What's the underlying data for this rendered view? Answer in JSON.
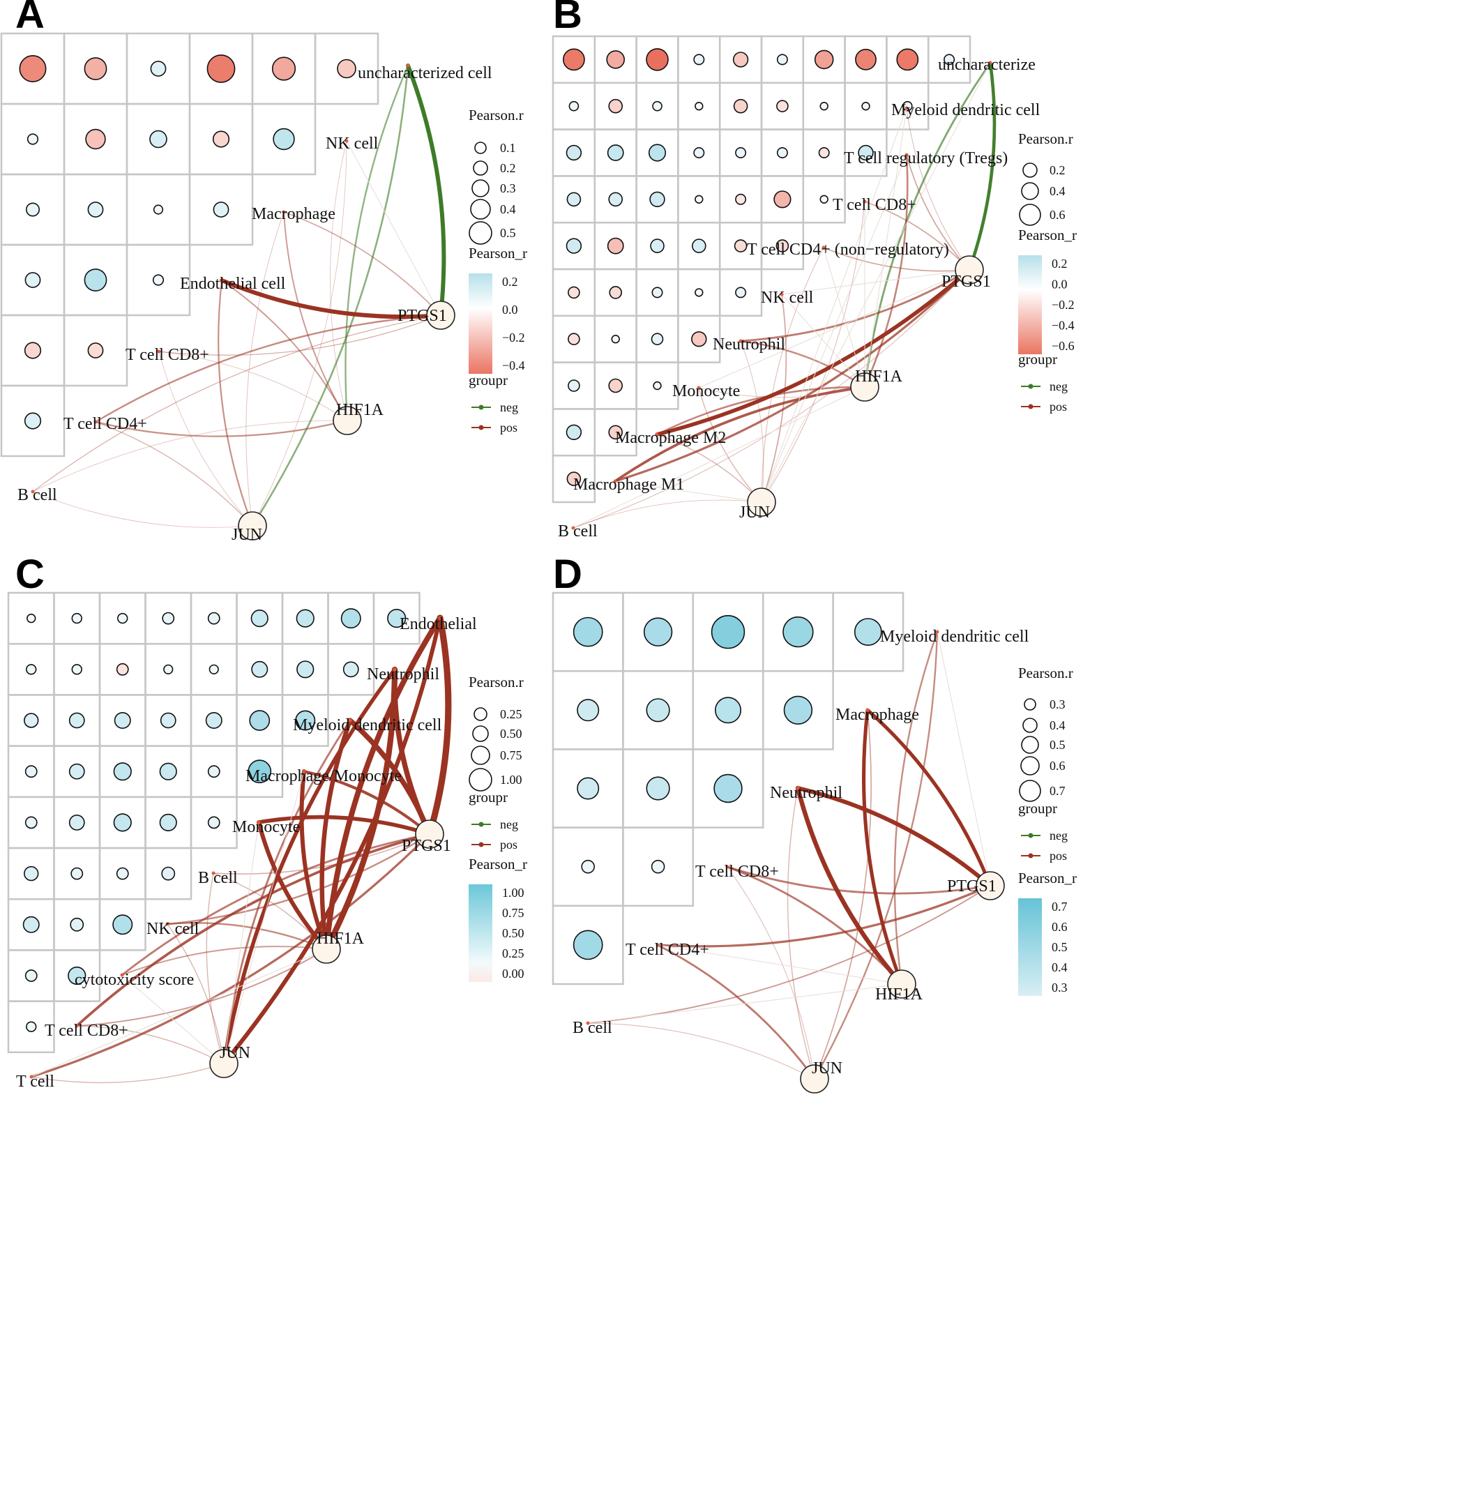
{
  "colors": {
    "neg": "#3e7b27",
    "pos": "#9b3322",
    "grid": "#c6c6c6",
    "gene_fill": "#fdf4ea",
    "pos_cell": "#e9705e",
    "neg_cell": "#7ccbdc",
    "zero_cell": "#f4f9fb"
  },
  "chart_data": [
    {
      "panel": "A",
      "type": "network-correlogram",
      "cell_types": [
        "B cell",
        "T cell CD4+",
        "T cell CD8+",
        "Endothelial cell",
        "Macrophage",
        "NK cell",
        "uncharacterized cell"
      ],
      "genes": [
        "PTGS1",
        "HIF1A",
        "JUN"
      ],
      "triangle_rows": [
        [
          -0.4,
          -0.25,
          0.08,
          -0.45,
          -0.28,
          -0.15
        ],
        [
          0.02,
          -0.18,
          0.12,
          -0.1,
          0.22
        ],
        [
          0.05,
          0.08,
          0.01,
          0.08
        ],
        [
          0.08,
          0.25,
          0.02
        ],
        [
          -0.1,
          -0.08
        ],
        [
          0.1
        ]
      ],
      "links": [
        {
          "from": "uncharacterized cell",
          "to": "PTGS1",
          "r": -0.6,
          "group": "neg"
        },
        {
          "from": "uncharacterized cell",
          "to": "HIF1A",
          "r": -0.2,
          "group": "neg"
        },
        {
          "from": "uncharacterized cell",
          "to": "JUN",
          "r": -0.22,
          "group": "neg"
        },
        {
          "from": "Endothelial cell",
          "to": "PTGS1",
          "r": 0.6,
          "group": "pos"
        },
        {
          "from": "Endothelial cell",
          "to": "HIF1A",
          "r": 0.15,
          "group": "pos"
        },
        {
          "from": "Endothelial cell",
          "to": "JUN",
          "r": 0.18,
          "group": "pos"
        },
        {
          "from": "Macrophage",
          "to": "PTGS1",
          "r": 0.12,
          "group": "pos"
        },
        {
          "from": "Macrophage",
          "to": "HIF1A",
          "r": 0.15,
          "group": "pos"
        },
        {
          "from": "T cell CD4+",
          "to": "PTGS1",
          "r": 0.2,
          "group": "pos"
        },
        {
          "from": "T cell CD4+",
          "to": "HIF1A",
          "r": 0.18,
          "group": "pos"
        },
        {
          "from": "T cell CD4+",
          "to": "JUN",
          "r": 0.08,
          "group": "pos"
        },
        {
          "from": "T cell CD8+",
          "to": "PTGS1",
          "r": 0.08,
          "group": "pos"
        },
        {
          "from": "B cell",
          "to": "PTGS1",
          "r": 0.08,
          "group": "pos"
        },
        {
          "from": "NK cell",
          "to": "HIF1A",
          "r": 0.03,
          "group": "pos"
        },
        {
          "from": "NK cell",
          "to": "JUN",
          "r": 0.03,
          "group": "pos"
        },
        {
          "from": "Macrophage",
          "to": "JUN",
          "r": 0.04,
          "group": "pos"
        },
        {
          "from": "T cell CD8+",
          "to": "HIF1A",
          "r": 0.03,
          "group": "pos"
        },
        {
          "from": "T cell CD8+",
          "to": "JUN",
          "r": 0.03,
          "group": "pos"
        },
        {
          "from": "B cell",
          "to": "HIF1A",
          "r": 0.03,
          "group": "pos"
        },
        {
          "from": "B cell",
          "to": "JUN",
          "r": 0.03,
          "group": "pos"
        }
      ],
      "legend": {
        "size_title": "Pearson.r",
        "size_values": [
          "0.1",
          "0.2",
          "0.3",
          "0.4",
          "0.5"
        ],
        "fill_title": "Pearson_r",
        "fill_ticks": [
          "0.2",
          "0.0",
          "−0.2",
          "−0.4"
        ],
        "group_title": "groupr",
        "groups": [
          "neg",
          "pos"
        ]
      }
    },
    {
      "panel": "B",
      "type": "network-correlogram",
      "cell_types": [
        "B cell",
        "Macrophage M1",
        "Macrophage M2",
        "Monocyte",
        "Neutrophil",
        "NK cell",
        "T cell CD4+ (non−regulatory)",
        "T cell CD8+",
        "T cell regulatory (Tregs)",
        "Myeloid dendritic cell",
        "uncharacterize"
      ],
      "genes": [
        "PTGS1",
        "HIF1A",
        "JUN"
      ],
      "triangle_rows": [
        [
          -0.6,
          -0.35,
          -0.65,
          0.05,
          -0.2,
          0.05,
          -0.4,
          -0.55,
          -0.6,
          0.05
        ],
        [
          0.03,
          -0.15,
          0.03,
          0.01,
          -0.15,
          -0.08,
          0.01,
          0.01,
          0.03
        ],
        [
          0.2,
          0.25,
          0.3,
          0.05,
          0.05,
          0.05,
          -0.05,
          0.2
        ],
        [
          0.15,
          0.15,
          0.2,
          0.01,
          -0.05,
          -0.3,
          0.01
        ],
        [
          0.2,
          -0.25,
          0.15,
          0.15,
          -0.1,
          -0.1
        ],
        [
          -0.08,
          -0.1,
          0.05,
          0.01,
          0.05
        ],
        [
          -0.08,
          0.01,
          0.08,
          -0.2
        ],
        [
          0.08,
          -0.15,
          0.01
        ],
        [
          0.2,
          -0.15
        ],
        [
          -0.15
        ]
      ],
      "links": [
        {
          "from": "uncharacterize",
          "to": "PTGS1",
          "r": -0.45,
          "group": "neg"
        },
        {
          "from": "uncharacterize",
          "to": "HIF1A",
          "r": -0.25,
          "group": "neg"
        },
        {
          "from": "T cell regulatory (Tregs)",
          "to": "HIF1A",
          "r": 0.22,
          "group": "pos"
        },
        {
          "from": "Macrophage M2",
          "to": "PTGS1",
          "r": 0.55,
          "group": "pos"
        },
        {
          "from": "Macrophage M2",
          "to": "HIF1A",
          "r": 0.22,
          "group": "pos"
        },
        {
          "from": "Macrophage M1",
          "to": "PTGS1",
          "r": 0.3,
          "group": "pos"
        },
        {
          "from": "Macrophage M1",
          "to": "HIF1A",
          "r": 0.35,
          "group": "pos"
        },
        {
          "from": "Neutrophil",
          "to": "PTGS1",
          "r": 0.25,
          "group": "pos"
        },
        {
          "from": "Neutrophil",
          "to": "HIF1A",
          "r": 0.2,
          "group": "pos"
        },
        {
          "from": "T cell CD4+ (non−regulatory)",
          "to": "PTGS1",
          "r": 0.12,
          "group": "pos"
        },
        {
          "from": "T cell CD8+",
          "to": "PTGS1",
          "r": 0.12,
          "group": "pos"
        },
        {
          "from": "T cell regulatory (Tregs)",
          "to": "PTGS1",
          "r": 0.12,
          "group": "pos"
        },
        {
          "from": "NK cell",
          "to": "JUN",
          "r": 0.12,
          "group": "pos"
        },
        {
          "from": "Monocyte",
          "to": "JUN",
          "r": 0.08,
          "group": "pos"
        },
        {
          "from": "Macrophage M2",
          "to": "JUN",
          "r": 0.08,
          "group": "pos"
        },
        {
          "from": "B cell",
          "to": "PTGS1",
          "r": 0.05,
          "group": "pos"
        },
        {
          "from": "B cell",
          "to": "JUN",
          "r": 0.03,
          "group": "pos"
        },
        {
          "from": "Myeloid dendritic cell",
          "to": "PTGS1",
          "r": 0.05,
          "group": "pos"
        },
        {
          "from": "T cell CD8+",
          "to": "JUN",
          "r": 0.05,
          "group": "pos"
        },
        {
          "from": "T cell CD4+ (non−regulatory)",
          "to": "JUN",
          "r": 0.05,
          "group": "pos"
        },
        {
          "from": "Neutrophil",
          "to": "JUN",
          "r": 0.04,
          "group": "pos"
        },
        {
          "from": "Monocyte",
          "to": "HIF1A",
          "r": 0.04,
          "group": "pos"
        }
      ],
      "legend": {
        "size_title": "Pearson.r",
        "size_values": [
          "0.2",
          "0.4",
          "0.6"
        ],
        "fill_title": "Pearson_r",
        "fill_ticks": [
          "0.2",
          "0.0",
          "−0.2",
          "−0.4",
          "−0.6"
        ],
        "group_title": "groupr",
        "groups": [
          "neg",
          "pos"
        ]
      }
    },
    {
      "panel": "C",
      "type": "network-correlogram",
      "cell_types": [
        "T cell",
        "T cell CD8+",
        "cytotoxicity score",
        "NK cell",
        "B cell",
        "Monocyte",
        "Macrophage/Monocyte",
        "Myeloid dendritic cell",
        "Neutrophil",
        "Endothelial"
      ],
      "genes": [
        "PTGS1",
        "HIF1A",
        "JUN"
      ],
      "triangle_rows": [
        [
          0.02,
          0.05,
          0.05,
          0.1,
          0.1,
          0.35,
          0.4,
          0.55,
          0.45
        ],
        [
          0.05,
          0.05,
          -0.1,
          0.03,
          0.03,
          0.3,
          0.35,
          0.25
        ],
        [
          0.2,
          0.25,
          0.3,
          0.25,
          0.3,
          0.6,
          0.55
        ],
        [
          0.1,
          0.25,
          0.4,
          0.35,
          0.1,
          0.85
        ],
        [
          0.1,
          0.25,
          0.4,
          0.35,
          0.1
        ],
        [
          0.2,
          0.1,
          0.1,
          0.15
        ],
        [
          0.3,
          0.15,
          0.55
        ],
        [
          0.1,
          0.4
        ],
        [
          0.05
        ]
      ],
      "links": [
        {
          "from": "Endothelial",
          "to": "PTGS1",
          "r": 0.95,
          "group": "pos"
        },
        {
          "from": "Endothelial",
          "to": "HIF1A",
          "r": 0.8,
          "group": "pos"
        },
        {
          "from": "Endothelial",
          "to": "JUN",
          "r": 0.6,
          "group": "pos"
        },
        {
          "from": "Neutrophil",
          "to": "PTGS1",
          "r": 0.75,
          "group": "pos"
        },
        {
          "from": "Neutrophil",
          "to": "HIF1A",
          "r": 0.85,
          "group": "pos"
        },
        {
          "from": "Neutrophil",
          "to": "JUN",
          "r": 0.55,
          "group": "pos"
        },
        {
          "from": "Myeloid dendritic cell",
          "to": "PTGS1",
          "r": 0.75,
          "group": "pos"
        },
        {
          "from": "Myeloid dendritic cell",
          "to": "HIF1A",
          "r": 0.65,
          "group": "pos"
        },
        {
          "from": "Macrophage/Monocyte",
          "to": "PTGS1",
          "r": 0.4,
          "group": "pos"
        },
        {
          "from": "Macrophage/Monocyte",
          "to": "HIF1A",
          "r": 0.6,
          "group": "pos"
        },
        {
          "from": "Monocyte",
          "to": "PTGS1",
          "r": 0.55,
          "group": "pos"
        },
        {
          "from": "Monocyte",
          "to": "HIF1A",
          "r": 0.6,
          "group": "pos"
        },
        {
          "from": "T cell CD8+",
          "to": "PTGS1",
          "r": 0.35,
          "group": "pos"
        },
        {
          "from": "T cell",
          "to": "PTGS1",
          "r": 0.3,
          "group": "pos"
        },
        {
          "from": "cytotoxicity score",
          "to": "PTGS1",
          "r": 0.25,
          "group": "pos"
        },
        {
          "from": "NK cell",
          "to": "PTGS1",
          "r": 0.2,
          "group": "pos"
        },
        {
          "from": "NK cell",
          "to": "HIF1A",
          "r": 0.2,
          "group": "pos"
        },
        {
          "from": "B cell",
          "to": "PTGS1",
          "r": 0.1,
          "group": "pos"
        },
        {
          "from": "B cell",
          "to": "HIF1A",
          "r": 0.08,
          "group": "pos"
        },
        {
          "from": "T cell CD8+",
          "to": "HIF1A",
          "r": 0.15,
          "group": "pos"
        },
        {
          "from": "cytotoxicity score",
          "to": "HIF1A",
          "r": 0.15,
          "group": "pos"
        },
        {
          "from": "T cell",
          "to": "JUN",
          "r": 0.08,
          "group": "pos"
        },
        {
          "from": "T cell CD8+",
          "to": "JUN",
          "r": 0.08,
          "group": "pos"
        },
        {
          "from": "B cell",
          "to": "JUN",
          "r": 0.08,
          "group": "pos"
        },
        {
          "from": "NK cell",
          "to": "JUN",
          "r": 0.08,
          "group": "pos"
        },
        {
          "from": "Myeloid dendritic cell",
          "to": "JUN",
          "r": 0.25,
          "group": "pos"
        }
      ],
      "legend": {
        "size_title": "Pearson.r",
        "size_values": [
          "0.25",
          "0.50",
          "0.75",
          "1.00"
        ],
        "group_title": "groupr",
        "groups": [
          "neg",
          "pos"
        ],
        "fill_title": "Pearson_r",
        "fill_ticks": [
          "1.00",
          "0.75",
          "0.50",
          "0.25",
          "0.00"
        ]
      }
    },
    {
      "panel": "D",
      "type": "network-correlogram",
      "cell_types": [
        "B cell",
        "T cell CD4+",
        "T cell CD8+",
        "Neutrophil",
        "Macrophage",
        "Myeloid dendritic cell"
      ],
      "genes": [
        "PTGS1",
        "HIF1A",
        "JUN"
      ],
      "triangle_rows": [
        [
          0.55,
          0.5,
          0.75,
          0.6,
          0.45
        ],
        [
          0.25,
          0.3,
          0.4,
          0.5
        ],
        [
          0.25,
          0.3,
          0.5
        ],
        [
          0.05,
          0.05
        ],
        [
          0.55
        ]
      ],
      "links": [
        {
          "from": "Neutrophil",
          "to": "PTGS1",
          "r": 0.6,
          "group": "pos"
        },
        {
          "from": "Neutrophil",
          "to": "HIF1A",
          "r": 0.65,
          "group": "pos"
        },
        {
          "from": "Macrophage",
          "to": "PTGS1",
          "r": 0.5,
          "group": "pos"
        },
        {
          "from": "Macrophage",
          "to": "HIF1A",
          "r": 0.5,
          "group": "pos"
        },
        {
          "from": "Macrophage",
          "to": "JUN",
          "r": 0.12,
          "group": "pos"
        },
        {
          "from": "Myeloid dendritic cell",
          "to": "HIF1A",
          "r": 0.2,
          "group": "pos"
        },
        {
          "from": "Myeloid dendritic cell",
          "to": "JUN",
          "r": 0.2,
          "group": "pos"
        },
        {
          "from": "T cell CD4+",
          "to": "PTGS1",
          "r": 0.3,
          "group": "pos"
        },
        {
          "from": "T cell CD4+",
          "to": "JUN",
          "r": 0.25,
          "group": "pos"
        },
        {
          "from": "T cell CD8+",
          "to": "PTGS1",
          "r": 0.25,
          "group": "pos"
        },
        {
          "from": "T cell CD8+",
          "to": "HIF1A",
          "r": 0.25,
          "group": "pos"
        },
        {
          "from": "B cell",
          "to": "PTGS1",
          "r": 0.15,
          "group": "pos"
        },
        {
          "from": "B cell",
          "to": "JUN",
          "r": 0.05,
          "group": "pos"
        },
        {
          "from": "Neutrophil",
          "to": "JUN",
          "r": 0.08,
          "group": "pos"
        },
        {
          "from": "T cell CD8+",
          "to": "JUN",
          "r": 0.05,
          "group": "pos"
        }
      ],
      "legend": {
        "size_title": "Pearson.r",
        "size_values": [
          "0.3",
          "0.4",
          "0.5",
          "0.6",
          "0.7"
        ],
        "group_title": "groupr",
        "groups": [
          "neg",
          "pos"
        ],
        "fill_title": "Pearson_r",
        "fill_ticks": [
          "0.7",
          "0.6",
          "0.5",
          "0.4",
          "0.3"
        ]
      }
    }
  ]
}
